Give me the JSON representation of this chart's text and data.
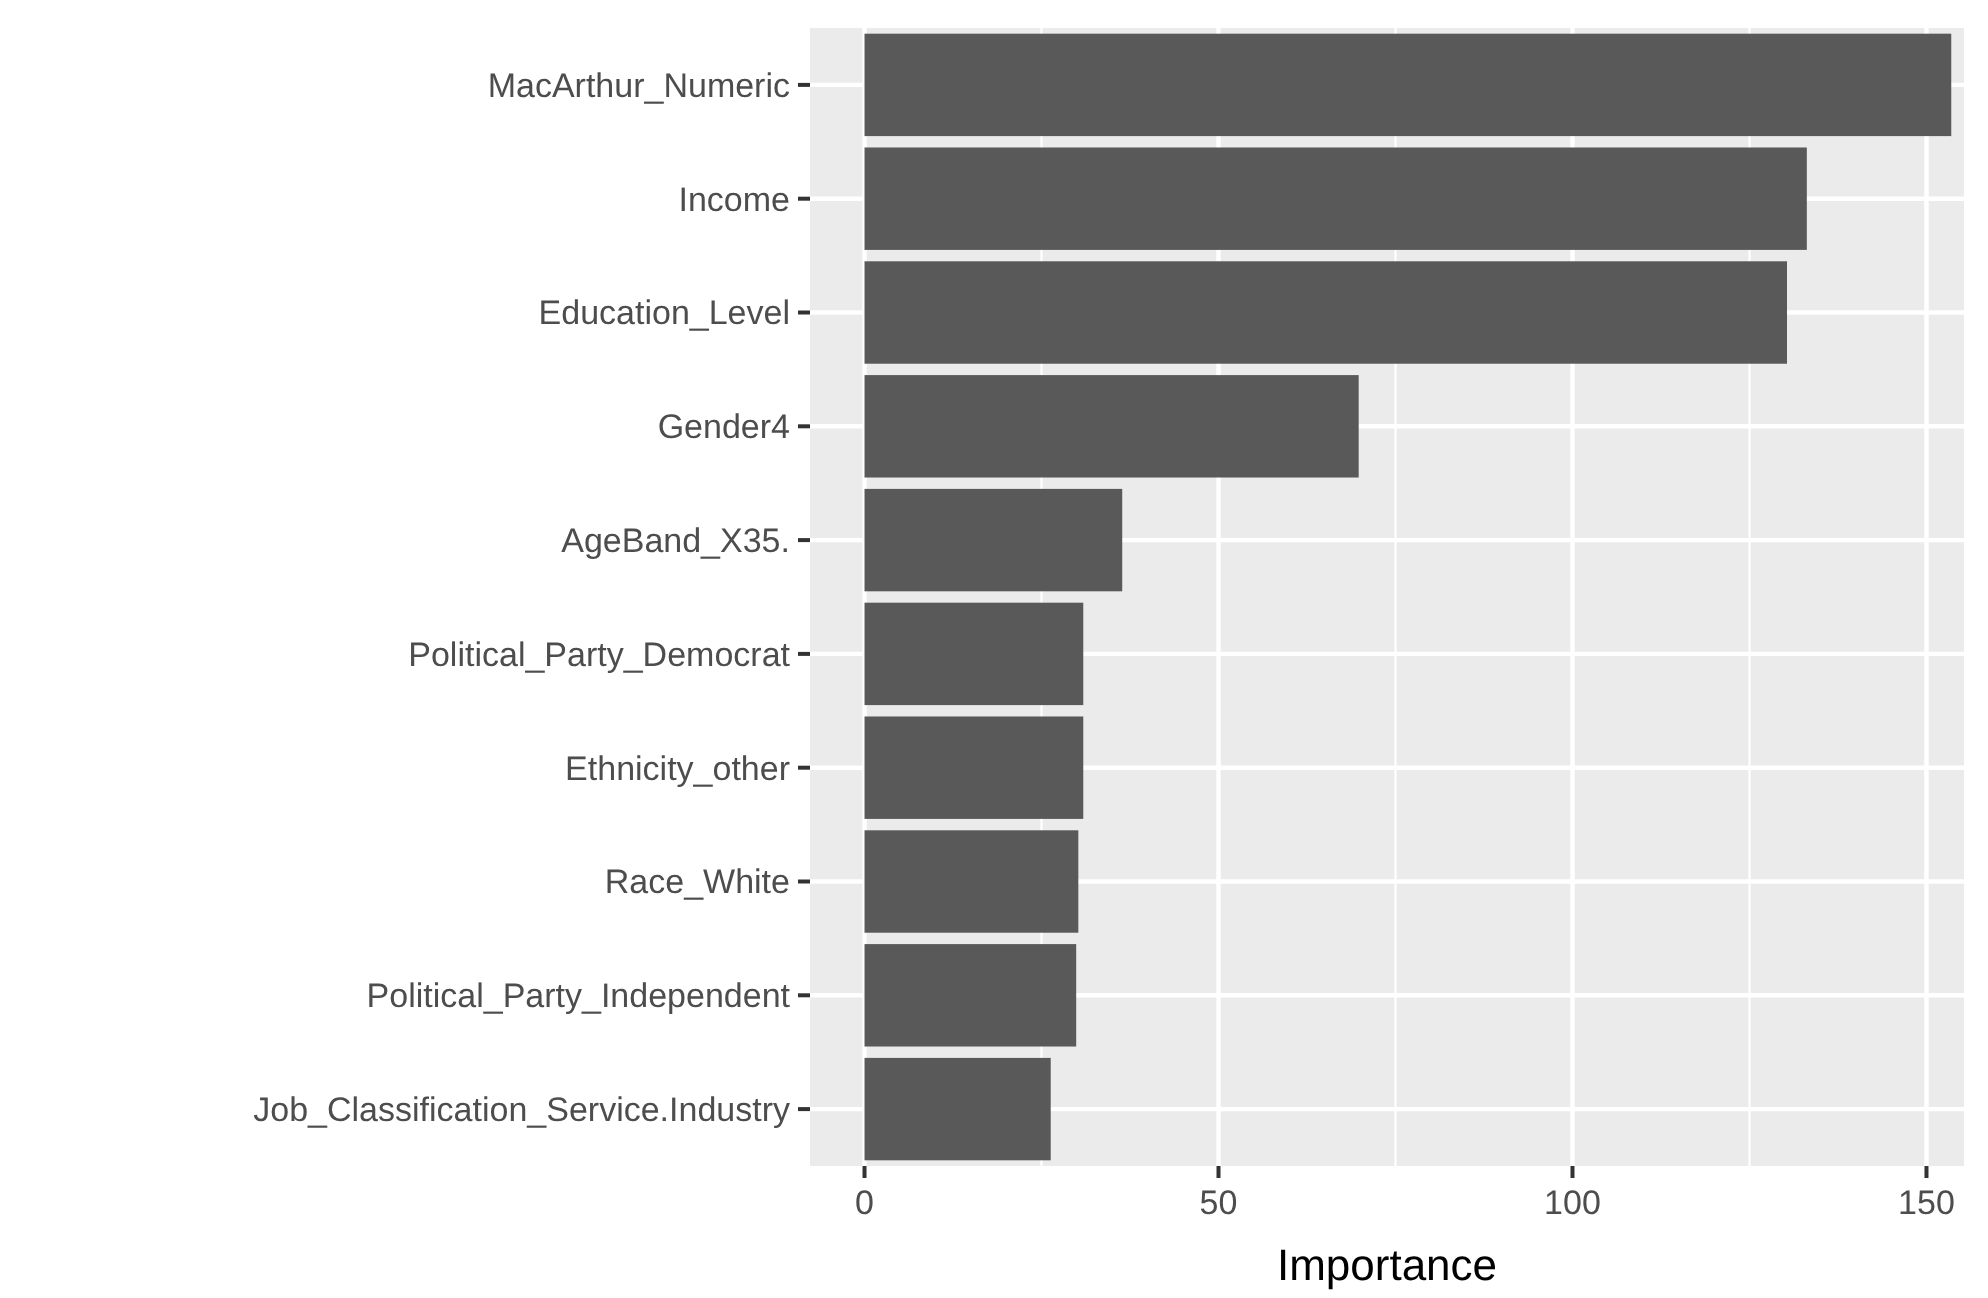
{
  "chart_data": {
    "type": "bar",
    "orientation": "horizontal",
    "xlabel": "Importance",
    "categories": [
      "MacArthur_Numeric",
      "Income",
      "Education_Level",
      "Gender4",
      "AgeBand_X35.",
      "Political_Party_Democrat",
      "Ethnicity_other",
      "Race_White",
      "Political_Party_Independent",
      "Job_Classification_Service.Industry"
    ],
    "values": [
      153.5,
      133.1,
      130.3,
      69.8,
      36.4,
      30.9,
      30.9,
      30.2,
      29.9,
      26.3
    ],
    "color": "#595959",
    "xlim": [
      -7.7,
      155.3
    ],
    "xticks": [
      0,
      {
        "value": 25,
        "label": null
      },
      50,
      {
        "value": 75,
        "label": null
      },
      100,
      {
        "value": 125,
        "label": null
      },
      150
    ],
    "grid": true
  }
}
